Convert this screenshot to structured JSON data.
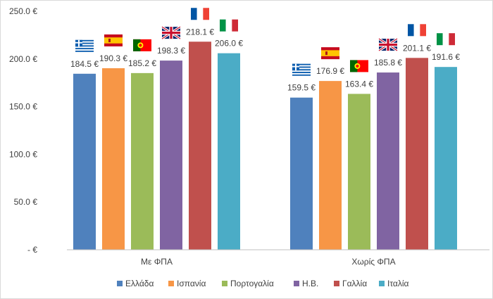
{
  "chart_data": {
    "type": "bar",
    "categories": [
      "Με ΦΠΑ",
      "Χωρίς ΦΠΑ"
    ],
    "series": [
      {
        "name": "Ελλάδα",
        "values": [
          184.5,
          159.5
        ],
        "color": "#4f81bd",
        "flag": "greece-flag-icon"
      },
      {
        "name": "Ισπανία",
        "values": [
          190.3,
          176.9
        ],
        "color": "#f79646",
        "flag": "spain-flag-icon"
      },
      {
        "name": "Πορτογαλία",
        "values": [
          185.2,
          163.4
        ],
        "color": "#9bbb59",
        "flag": "portugal-flag-icon"
      },
      {
        "name": "Η.Β.",
        "values": [
          198.3,
          185.8
        ],
        "color": "#8064a2",
        "flag": "uk-flag-icon"
      },
      {
        "name": "Γαλλία",
        "values": [
          218.1,
          201.1
        ],
        "color": "#c0504d",
        "flag": "france-flag-icon"
      },
      {
        "name": "Ιταλία",
        "values": [
          206.0,
          191.6
        ],
        "color": "#4bacc6",
        "flag": "italy-flag-icon"
      }
    ],
    "data_labels": [
      [
        "184.5 €",
        "159.5 €"
      ],
      [
        "190.3 €",
        "176.9 €"
      ],
      [
        "185.2 €",
        "163.4 €"
      ],
      [
        "198.3 €",
        "185.8 €"
      ],
      [
        "218.1 €",
        "201.1 €"
      ],
      [
        "206.0 €",
        "191.6 €"
      ]
    ],
    "yticks": [
      0,
      50,
      100,
      150,
      200,
      250
    ],
    "ytick_labels": [
      "-  €",
      "50.0 €",
      "100.0 €",
      "150.0 €",
      "200.0 €",
      "250.0 €"
    ],
    "ylim": [
      0,
      250
    ],
    "grid": false,
    "legend_position": "bottom"
  }
}
